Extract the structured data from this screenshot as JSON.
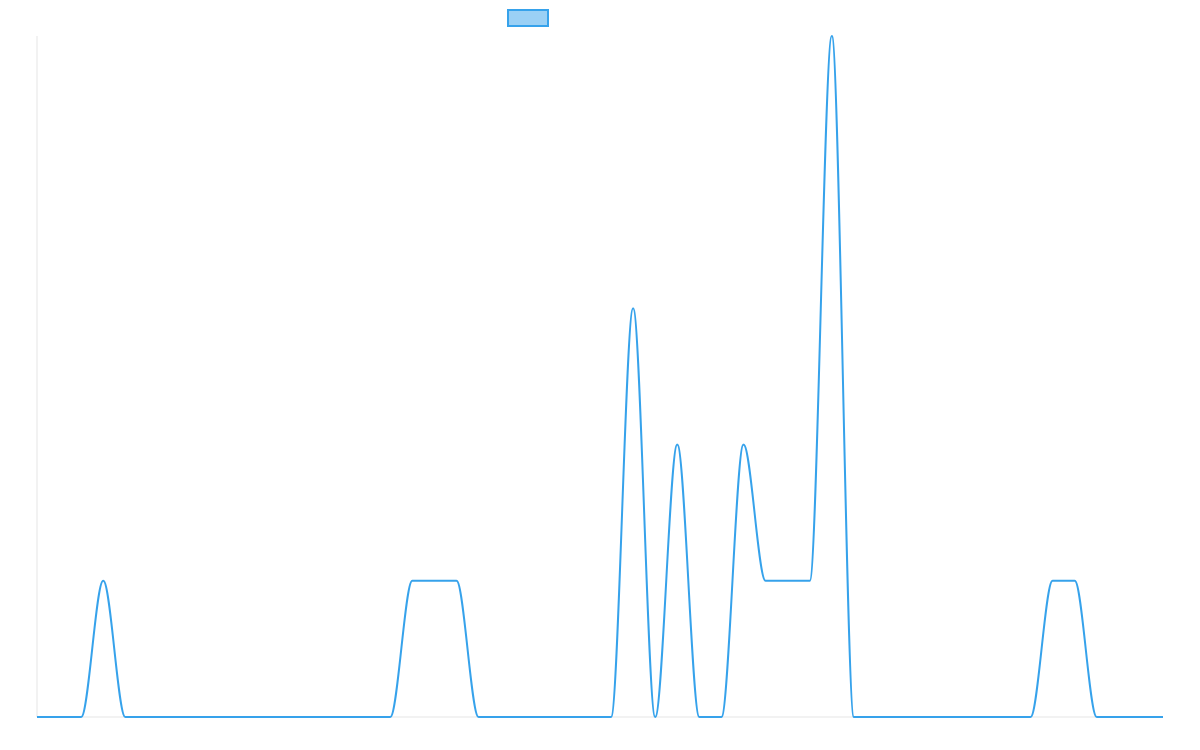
{
  "chart_data": {
    "type": "line",
    "title": "",
    "xlabel": "",
    "ylabel": "",
    "grid": false,
    "legend_position": "top-center",
    "x": [
      0,
      1,
      2,
      3,
      4,
      5,
      6,
      7,
      8,
      9,
      10,
      11,
      12,
      13,
      14,
      15,
      16,
      17,
      18,
      19,
      20,
      21,
      22,
      23,
      24,
      25,
      26,
      27,
      28,
      29,
      30,
      31,
      32,
      33,
      34,
      35,
      36,
      37,
      38,
      39,
      40,
      41,
      42,
      43,
      44,
      45,
      46,
      47,
      48,
      49,
      50,
      51
    ],
    "ylim": [
      0,
      5
    ],
    "series": [
      {
        "name": "",
        "color": "#36a2eb",
        "fill_color": "#9ad0f5",
        "values": [
          0,
          0,
          0,
          1,
          0,
          0,
          0,
          0,
          0,
          0,
          0,
          0,
          0,
          0,
          0,
          0,
          0,
          1,
          1,
          1,
          0,
          0,
          0,
          0,
          0,
          0,
          0,
          3,
          0,
          2,
          0,
          0,
          2,
          1,
          1,
          1,
          5,
          0,
          0,
          0,
          0,
          0,
          0,
          0,
          0,
          0,
          1,
          1,
          0,
          0,
          0,
          0
        ]
      }
    ]
  }
}
